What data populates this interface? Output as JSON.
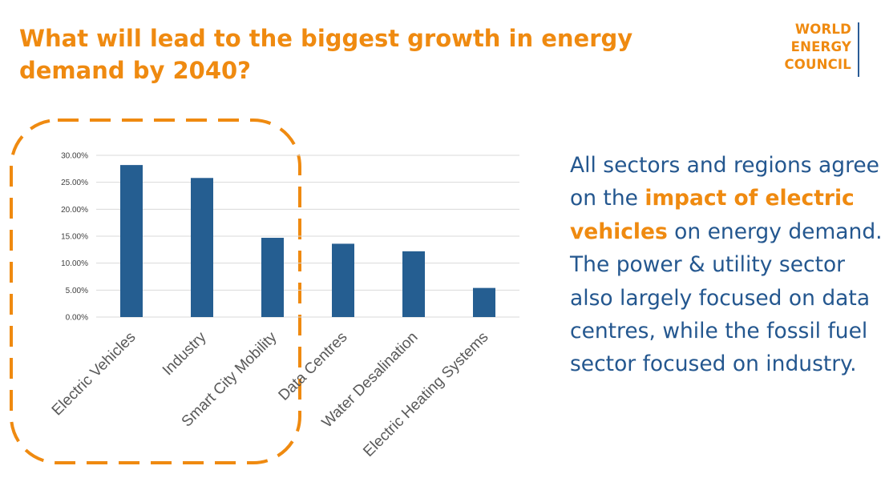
{
  "header": {
    "title_line1": "What will lead to the biggest growth in energy",
    "title_line2": "demand by 2040?"
  },
  "logo": {
    "line1": "WORLD",
    "line2": "ENERGY",
    "line3": "COUNCIL"
  },
  "colors": {
    "accent": "#ef8a10",
    "bar": "#255e91",
    "text": "#24578f",
    "gridline": "#d9d9d9"
  },
  "chart_data": {
    "type": "bar",
    "categories": [
      "Electric Vehicles",
      "Industry",
      "Smart City Mobility",
      "Data Centres",
      "Water Desalination",
      "Electric Heating Systems"
    ],
    "values": [
      28.2,
      25.8,
      14.7,
      13.6,
      12.2,
      5.4
    ],
    "y_ticks": [
      "0.00%",
      "5.00%",
      "10.00%",
      "15.00%",
      "20.00%",
      "25.00%",
      "30.00%"
    ],
    "ylim": [
      0,
      30
    ],
    "value_format": "percent",
    "grid": true,
    "legend": "none"
  },
  "summary": {
    "part1": "All sectors and regions agree on the ",
    "highlight": "impact of electric vehicles",
    "part2": " on energy demand. The power & utility sector also largely focused on data centres, while the fossil fuel sector focused on industry."
  }
}
